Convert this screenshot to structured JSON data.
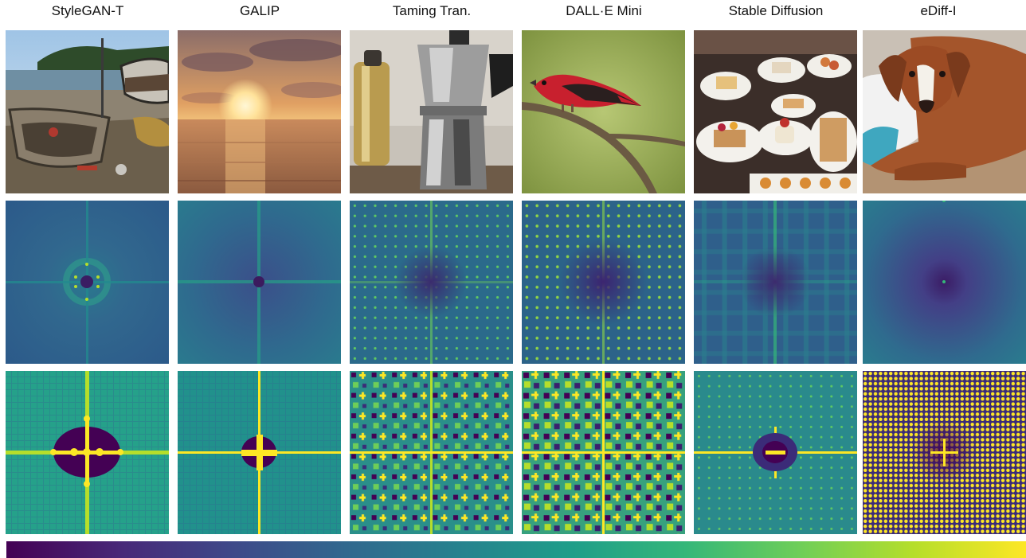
{
  "colorbar": {
    "colors": [
      "#440154",
      "#482878",
      "#3e4989",
      "#31688e",
      "#26828e",
      "#1f9e89",
      "#35b779",
      "#6ece58",
      "#b5de2b",
      "#fde725"
    ]
  },
  "columns": [
    {
      "title": "StyleGAN-T",
      "photo": "boats-on-beach"
    },
    {
      "title": "GALIP",
      "photo": "sunset-over-sea"
    },
    {
      "title": "Taming Tran.",
      "photo": "moka-pot"
    },
    {
      "title": "DALL·E Mini",
      "photo": "red-bird-on-branch"
    },
    {
      "title": "Stable Diffusion",
      "photo": "dessert-table"
    },
    {
      "title": "eDiff-I",
      "photo": "dog-on-pillow"
    }
  ]
}
